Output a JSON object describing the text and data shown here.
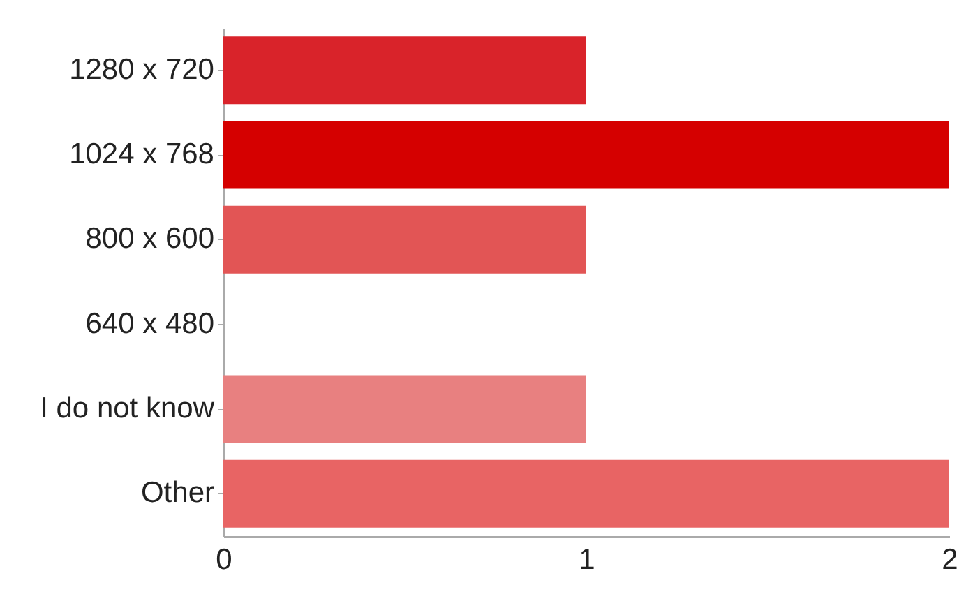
{
  "chart_data": {
    "type": "bar",
    "orientation": "horizontal",
    "categories": [
      "1280 x 720",
      "1024 x 768",
      "800 x 600",
      "640 x 480",
      "I do not know",
      "Other"
    ],
    "values": [
      1,
      2,
      1,
      0,
      1,
      2
    ],
    "colors": [
      "#d9232a",
      "#d50000",
      "#e25555",
      "#e46a6a",
      "#e88080",
      "#e86464"
    ],
    "xlim": [
      0,
      2
    ],
    "xticks": [
      0,
      1,
      2
    ],
    "grid": false
  }
}
